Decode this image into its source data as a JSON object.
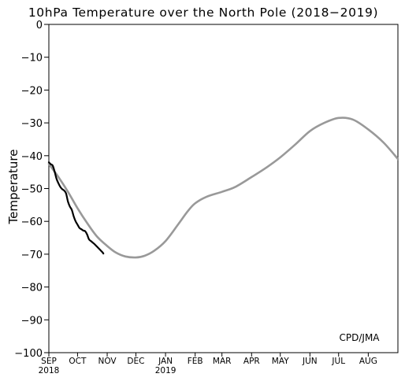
{
  "chart_data": {
    "type": "line",
    "title": "10hPa Temperature over the North Pole (2018−2019)",
    "ylabel": "Temperature",
    "xlabel": "",
    "annotation": "CPD/JMA",
    "ylim": [
      -100,
      0
    ],
    "yticks": [
      0,
      -10,
      -20,
      -30,
      -40,
      -50,
      -60,
      -70,
      -80,
      -90,
      -100
    ],
    "ytick_labels": [
      "0",
      "−10",
      "−20",
      "−30",
      "−40",
      "−50",
      "−60",
      "−70",
      "−80",
      "−90",
      "−100"
    ],
    "xlim": [
      0,
      365
    ],
    "x_unit": "days from 1 SEP 2018",
    "xticks": [
      {
        "x": 0,
        "label": "SEP",
        "year": "2018"
      },
      {
        "x": 30,
        "label": "OCT"
      },
      {
        "x": 61,
        "label": "NOV"
      },
      {
        "x": 91,
        "label": "DEC"
      },
      {
        "x": 122,
        "label": "JAN",
        "year": "2019"
      },
      {
        "x": 153,
        "label": "FEB"
      },
      {
        "x": 181,
        "label": "MAR"
      },
      {
        "x": 212,
        "label": "APR"
      },
      {
        "x": 242,
        "label": "MAY"
      },
      {
        "x": 273,
        "label": "JUN"
      },
      {
        "x": 303,
        "label": "JUL"
      },
      {
        "x": 334,
        "label": "AUG"
      }
    ],
    "grid": false,
    "series": [
      {
        "name": "",
        "color": "#999999",
        "x": [
          0,
          10,
          20,
          30,
          40,
          50,
          61,
          70,
          80,
          91,
          100,
          110,
          122,
          135,
          145,
          153,
          165,
          181,
          195,
          212,
          228,
          242,
          258,
          273,
          288,
          303,
          318,
          334,
          350,
          365
        ],
        "values": [
          -42.5,
          -46.5,
          -51,
          -56,
          -60.5,
          -64.5,
          -67.5,
          -69.5,
          -70.7,
          -71,
          -70.5,
          -69,
          -66,
          -61,
          -57,
          -54.5,
          -52.5,
          -51,
          -49.5,
          -46.5,
          -43.5,
          -40.5,
          -36.5,
          -32.5,
          -30,
          -28.5,
          -29,
          -32,
          -36,
          -41
        ]
      },
      {
        "name": "",
        "color": "#000000",
        "x": [
          0,
          2,
          4,
          6,
          8,
          10,
          12,
          14,
          16,
          18,
          20,
          22,
          24,
          26,
          28,
          30,
          32,
          34,
          36,
          38,
          40,
          42,
          44,
          46,
          48,
          50,
          52,
          54,
          56,
          57
        ],
        "values": [
          -42,
          -42.6,
          -43,
          -44.8,
          -47,
          -48.4,
          -49.5,
          -50.2,
          -50.6,
          -51.5,
          -54,
          -55.5,
          -56.5,
          -58.5,
          -60,
          -61,
          -62,
          -62.4,
          -62.8,
          -63,
          -64,
          -65.5,
          -66,
          -66.5,
          -67,
          -67.6,
          -68.2,
          -68.8,
          -69.4,
          -69.8
        ]
      }
    ]
  }
}
